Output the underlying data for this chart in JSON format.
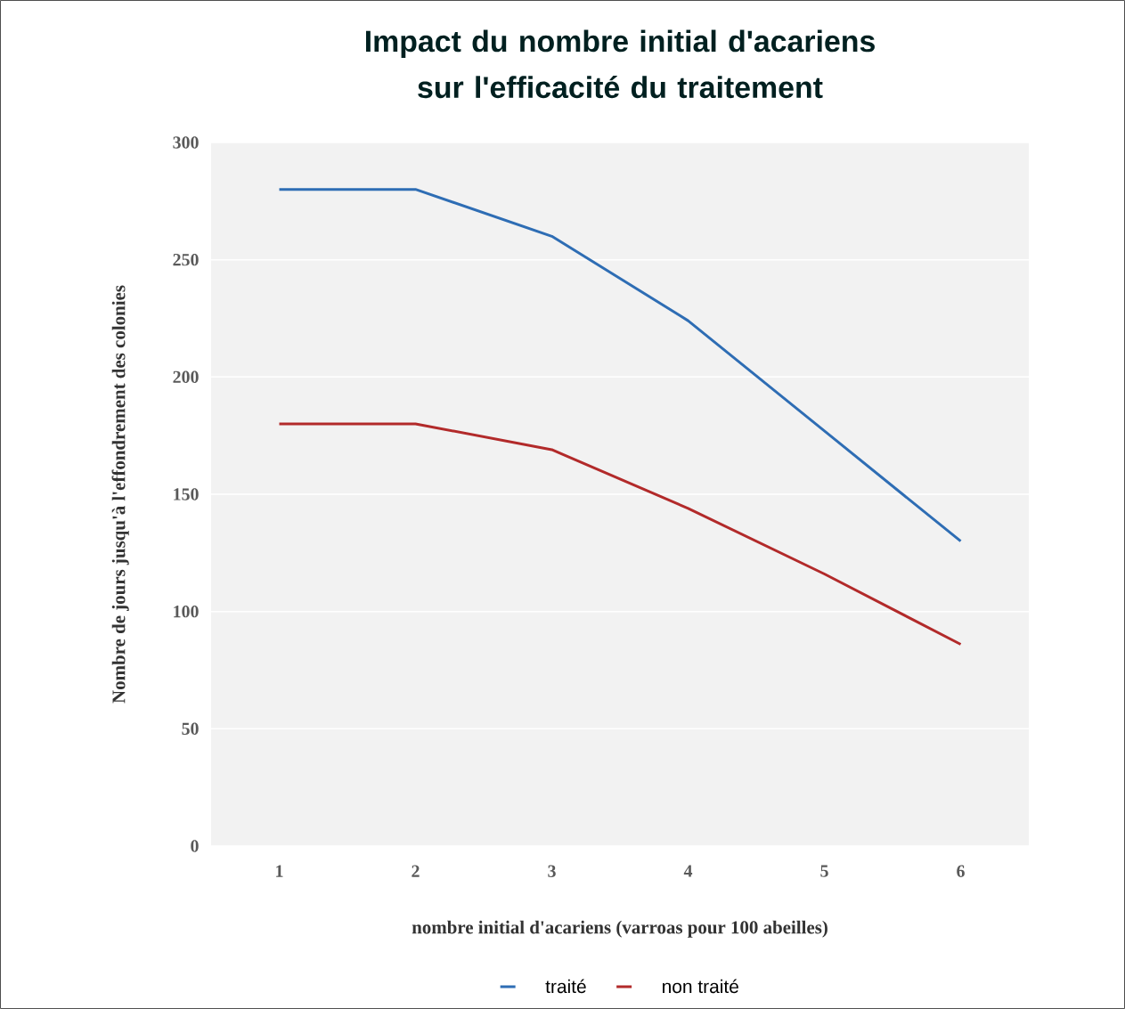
{
  "chart_data": {
    "type": "line",
    "title": "Impact du nombre initial d'acariens sur l'efficacité du traitement",
    "xlabel": "nombre initial d'acariens (varroas pour 100 abeilles)",
    "ylabel": "Nombre de jours jusqu'à l'effondrement des colonies",
    "categories": [
      "1",
      "2",
      "3",
      "4",
      "5",
      "6"
    ],
    "series": [
      {
        "name": "traité",
        "color": "#2e6db4",
        "values": [
          280,
          280,
          260,
          224,
          177,
          130
        ]
      },
      {
        "name": "non traité",
        "color": "#b22a2a",
        "values": [
          180,
          180,
          169,
          144,
          116,
          86
        ]
      }
    ],
    "ylim": [
      0,
      300
    ],
    "yticks": [
      0,
      50,
      100,
      150,
      200,
      250,
      300
    ],
    "grid": "y",
    "legend": "bottom",
    "marker": "none",
    "line_style": "solid"
  }
}
